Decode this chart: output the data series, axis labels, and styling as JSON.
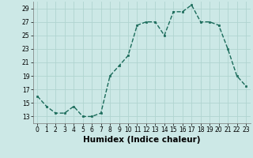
{
  "x": [
    0,
    1,
    2,
    3,
    4,
    5,
    6,
    7,
    8,
    9,
    10,
    11,
    12,
    13,
    14,
    15,
    16,
    17,
    18,
    19,
    20,
    21,
    22,
    23
  ],
  "y": [
    16,
    14.5,
    13.5,
    13.5,
    14.5,
    13,
    13,
    13.5,
    19,
    20.5,
    22,
    26.5,
    27,
    27,
    25,
    28.5,
    28.5,
    29.5,
    27,
    27,
    26.5,
    23,
    19,
    17.5
  ],
  "line_color": "#1a6b5a",
  "marker_color": "#1a6b5a",
  "bg_color": "#cce8e6",
  "grid_color": "#b0d4d0",
  "xlabel": "Humidex (Indice chaleur)",
  "xlim": [
    -0.5,
    23.5
  ],
  "ylim": [
    12,
    30
  ],
  "yticks": [
    13,
    15,
    17,
    19,
    21,
    23,
    25,
    27,
    29
  ],
  "xticks": [
    0,
    1,
    2,
    3,
    4,
    5,
    6,
    7,
    8,
    9,
    10,
    11,
    12,
    13,
    14,
    15,
    16,
    17,
    18,
    19,
    20,
    21,
    22,
    23
  ],
  "tick_fontsize": 5.5,
  "label_fontsize": 7.5
}
